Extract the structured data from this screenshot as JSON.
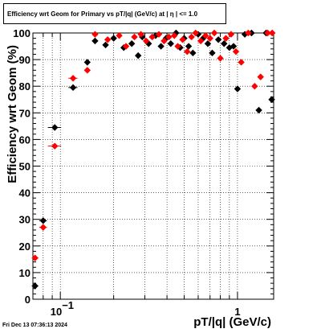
{
  "chart_data": {
    "type": "scatter",
    "title": "Efficiency wrt Geom for Primary vs pT/|q| (GeV/c) at |  η  | <= 1.0",
    "xlabel": "pT/|q| (GeV/c)",
    "ylabel": "Efficiency wrt Geom (%)",
    "x_scale": "log",
    "xlim": [
      0.07,
      1.6
    ],
    "ylim": [
      0,
      100
    ],
    "x_tick_labels": [
      {
        "x": 0.1,
        "base": "10",
        "exp": "−1"
      },
      {
        "x": 1,
        "base": "1",
        "exp": ""
      }
    ],
    "y_ticks": [
      0,
      10,
      20,
      30,
      40,
      50,
      60,
      70,
      80,
      90,
      100
    ],
    "grid": true,
    "colors": {
      "series_0": "#000000",
      "series_1": "#ff0000"
    },
    "series": [
      {
        "points": [
          {
            "x": 0.072,
            "y": 5,
            "xerr": 0.003
          },
          {
            "x": 0.08,
            "y": 29.5,
            "xerr": 0.004
          },
          {
            "x": 0.093,
            "y": 64.5,
            "xerr": 0.008
          },
          {
            "x": 0.118,
            "y": 79.5,
            "xerr": 0.007
          },
          {
            "x": 0.142,
            "y": 89
          },
          {
            "x": 0.157,
            "y": 97
          },
          {
            "x": 0.18,
            "y": 95.5
          },
          {
            "x": 0.2,
            "y": 98
          },
          {
            "x": 0.228,
            "y": 94.5
          },
          {
            "x": 0.253,
            "y": 96
          },
          {
            "x": 0.275,
            "y": 91.5
          },
          {
            "x": 0.29,
            "y": 98.5
          },
          {
            "x": 0.315,
            "y": 96
          },
          {
            "x": 0.345,
            "y": 99
          },
          {
            "x": 0.37,
            "y": 95
          },
          {
            "x": 0.395,
            "y": 98
          },
          {
            "x": 0.42,
            "y": 96
          },
          {
            "x": 0.45,
            "y": 100
          },
          {
            "x": 0.475,
            "y": 94.5
          },
          {
            "x": 0.5,
            "y": 98
          },
          {
            "x": 0.53,
            "y": 95
          },
          {
            "x": 0.56,
            "y": 92.5
          },
          {
            "x": 0.6,
            "y": 99.5
          },
          {
            "x": 0.64,
            "y": 98
          },
          {
            "x": 0.68,
            "y": 96
          },
          {
            "x": 0.72,
            "y": 92.5
          },
          {
            "x": 0.78,
            "y": 97.5
          },
          {
            "x": 0.84,
            "y": 96
          },
          {
            "x": 0.9,
            "y": 94.5
          },
          {
            "x": 0.95,
            "y": 95
          },
          {
            "x": 1.0,
            "y": 79
          },
          {
            "x": 1.1,
            "y": 99.5
          },
          {
            "x": 1.2,
            "y": 100
          },
          {
            "x": 1.32,
            "y": 71
          },
          {
            "x": 1.45,
            "y": 100
          },
          {
            "x": 1.56,
            "y": 75
          }
        ]
      },
      {
        "points": [
          {
            "x": 0.072,
            "y": 15.5,
            "xerr": 0.003
          },
          {
            "x": 0.08,
            "y": 27,
            "xerr": 0.004
          },
          {
            "x": 0.093,
            "y": 57.5,
            "xerr": 0.008
          },
          {
            "x": 0.118,
            "y": 83,
            "xerr": 0.007
          },
          {
            "x": 0.142,
            "y": 86
          },
          {
            "x": 0.157,
            "y": 99.5
          },
          {
            "x": 0.185,
            "y": 97.5
          },
          {
            "x": 0.215,
            "y": 99
          },
          {
            "x": 0.235,
            "y": 95
          },
          {
            "x": 0.262,
            "y": 98.5
          },
          {
            "x": 0.285,
            "y": 99.5
          },
          {
            "x": 0.305,
            "y": 97
          },
          {
            "x": 0.33,
            "y": 98.5
          },
          {
            "x": 0.36,
            "y": 99.5
          },
          {
            "x": 0.385,
            "y": 97
          },
          {
            "x": 0.41,
            "y": 98.5
          },
          {
            "x": 0.44,
            "y": 99
          },
          {
            "x": 0.46,
            "y": 95
          },
          {
            "x": 0.49,
            "y": 97.5
          },
          {
            "x": 0.52,
            "y": 93
          },
          {
            "x": 0.55,
            "y": 98.5
          },
          {
            "x": 0.58,
            "y": 100
          },
          {
            "x": 0.62,
            "y": 97
          },
          {
            "x": 0.66,
            "y": 99
          },
          {
            "x": 0.7,
            "y": 98
          },
          {
            "x": 0.74,
            "y": 100
          },
          {
            "x": 0.8,
            "y": 90.5
          },
          {
            "x": 0.86,
            "y": 98
          },
          {
            "x": 0.92,
            "y": 99.5
          },
          {
            "x": 0.98,
            "y": 93
          },
          {
            "x": 1.05,
            "y": 89
          },
          {
            "x": 1.15,
            "y": 100
          },
          {
            "x": 1.25,
            "y": 80
          },
          {
            "x": 1.35,
            "y": 83.5
          },
          {
            "x": 1.48,
            "y": 100
          },
          {
            "x": 1.57,
            "y": 100
          }
        ]
      }
    ]
  },
  "footer": {
    "timestamp": "Fri Dec 13 07:36:13 2024"
  }
}
